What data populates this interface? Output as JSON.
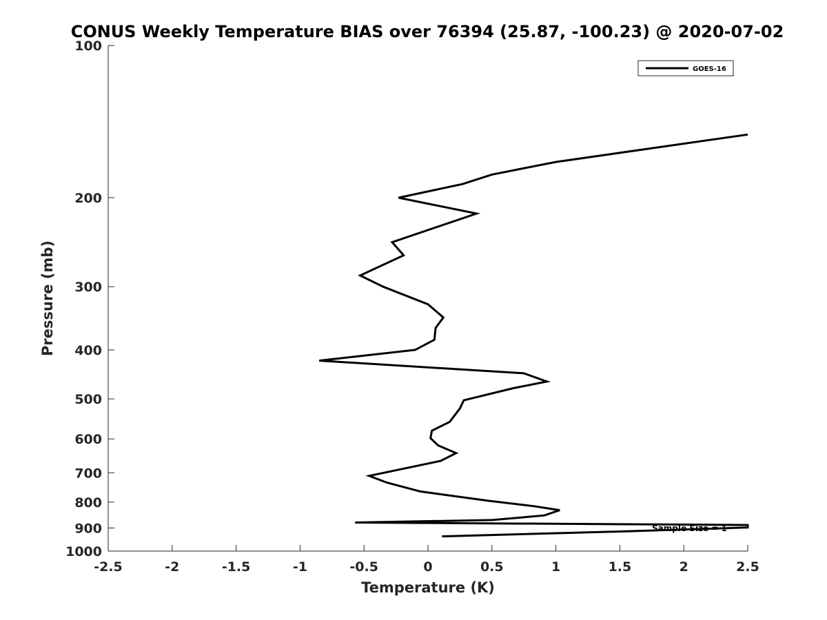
{
  "chart_data": {
    "type": "line",
    "title": "CONUS Weekly Temperature BIAS over 76394 (25.87, -100.23) @ 2020-07-02",
    "xlabel": "Temperature (K)",
    "ylabel": "Pressure (mb)",
    "xlim": [
      -2.5,
      2.5
    ],
    "ylim": [
      1000,
      100
    ],
    "yscale": "log",
    "xticks": [
      "-2.5",
      "-2",
      "-1.5",
      "-1",
      "-0.5",
      "0",
      "0.5",
      "1",
      "1.5",
      "2",
      "2.5"
    ],
    "yticks": [
      "100",
      "200",
      "300",
      "400",
      "500",
      "600",
      "700",
      "800",
      "900",
      "1000"
    ],
    "grid": false,
    "legend_position": "top-right",
    "annotation": "Sample Size = 1",
    "series": [
      {
        "name": "GOES-16",
        "color": "#000000",
        "x": [
          2.5,
          1.0,
          0.5,
          0.27,
          -0.23,
          0.38,
          -0.28,
          -0.19,
          -0.53,
          -0.35,
          0.0,
          0.12,
          0.06,
          0.05,
          -0.1,
          -0.85,
          0.75,
          0.93,
          0.67,
          0.28,
          0.25,
          0.17,
          0.03,
          0.02,
          0.08,
          0.22,
          0.1,
          -0.46,
          -0.32,
          -0.06,
          0.47,
          0.83,
          1.03,
          0.91,
          0.5,
          -0.57,
          2.5,
          2.5,
          1.55,
          0.11
        ],
        "y": [
          150,
          170,
          180,
          188,
          200,
          215,
          245,
          260,
          285,
          300,
          325,
          345,
          362,
          382,
          400,
          420,
          445,
          462,
          476,
          503,
          522,
          555,
          578,
          598,
          618,
          640,
          663,
          710,
          732,
          762,
          795,
          815,
          830,
          850,
          868,
          878,
          888,
          898,
          914,
          935
        ]
      }
    ]
  }
}
